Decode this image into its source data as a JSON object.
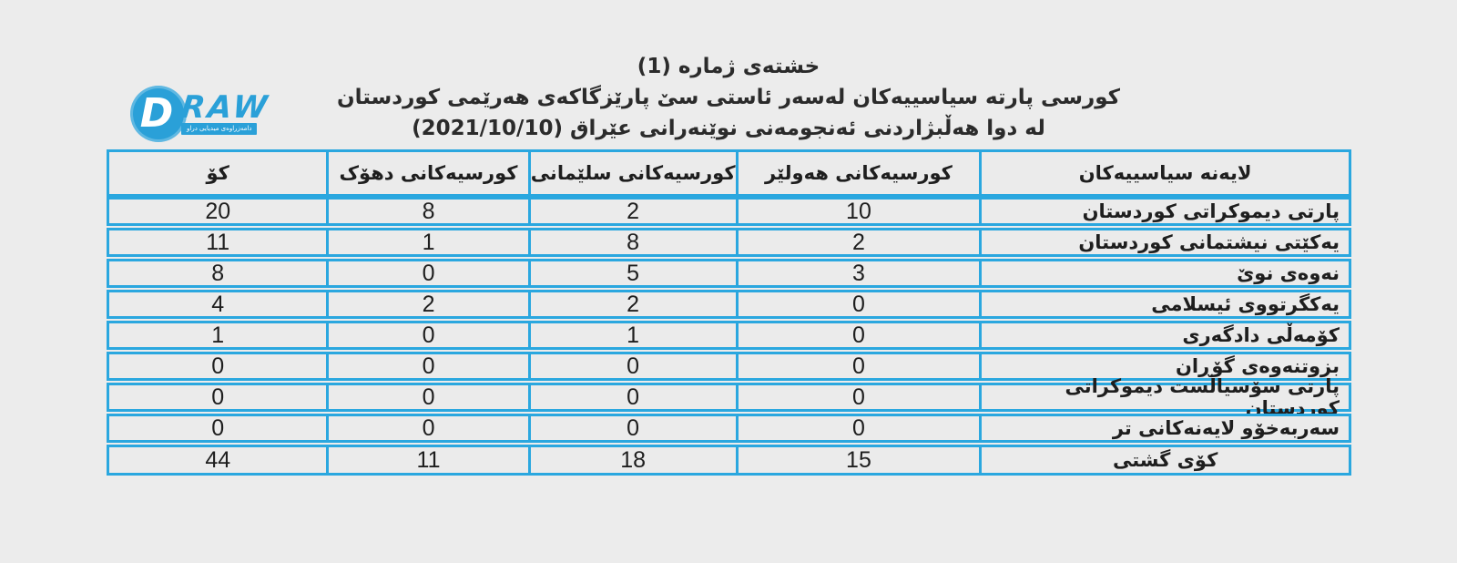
{
  "colors": {
    "page_bg": "#ececec",
    "cell_bg": "#ebebeb",
    "table_border": "#2aa7df",
    "logo_blue": "#2aa0d8",
    "text": "#1e1e1e"
  },
  "logo": {
    "d_letter": "D",
    "raw_text": "RAW",
    "tagline": "دامەزراوەی میدیایی دراو"
  },
  "chart_data": {
    "type": "table",
    "title_lines": [
      "خشتەی ژمارە (1)",
      "کورسی پارتە سیاسییەکان لەسەر ئاستی سێ پارێزگاکەی هەرێمی کوردستان",
      "لە دوا هەڵبژاردنی ئەنجومەنی نوێنەرانی عێراق (2021/10/10)"
    ],
    "columns": [
      {
        "id": "party",
        "label": "لایەنە سیاسییەکان"
      },
      {
        "id": "hewler",
        "label": "کورسیەکانی هەولێر"
      },
      {
        "id": "slemani",
        "label": "کورسیەکانی سلێمانی"
      },
      {
        "id": "dhok",
        "label": "کورسیەکانی دهۆک"
      },
      {
        "id": "ko",
        "label": "کۆ"
      }
    ],
    "rows": [
      {
        "party": "پارتی دیموکراتی کوردستان",
        "hewler": "10",
        "slemani": "2",
        "dhok": "8",
        "ko": "20"
      },
      {
        "party": "یەکێتی نیشتمانی کوردستان",
        "hewler": "2",
        "slemani": "8",
        "dhok": "1",
        "ko": "11"
      },
      {
        "party": "نەوەی نوێ",
        "hewler": "3",
        "slemani": "5",
        "dhok": "0",
        "ko": "8"
      },
      {
        "party": "یەکگرتووی ئیسلامی",
        "hewler": "0",
        "slemani": "2",
        "dhok": "2",
        "ko": "4"
      },
      {
        "party": "کۆمەڵی دادگەری",
        "hewler": "0",
        "slemani": "1",
        "dhok": "0",
        "ko": "1"
      },
      {
        "party": "بزوتنەوەی گۆڕان",
        "hewler": "0",
        "slemani": "0",
        "dhok": "0",
        "ko": "0"
      },
      {
        "party": "پارتی سۆسیالست دیموکراتی کوردستان",
        "hewler": "0",
        "slemani": "0",
        "dhok": "0",
        "ko": "0"
      },
      {
        "party": "سەربەخۆو لایەنەکانی تر",
        "hewler": "0",
        "slemani": "0",
        "dhok": "0",
        "ko": "0"
      }
    ],
    "total_row": {
      "party": "کۆی گشتی",
      "hewler": "15",
      "slemani": "18",
      "dhok": "11",
      "ko": "44"
    }
  }
}
